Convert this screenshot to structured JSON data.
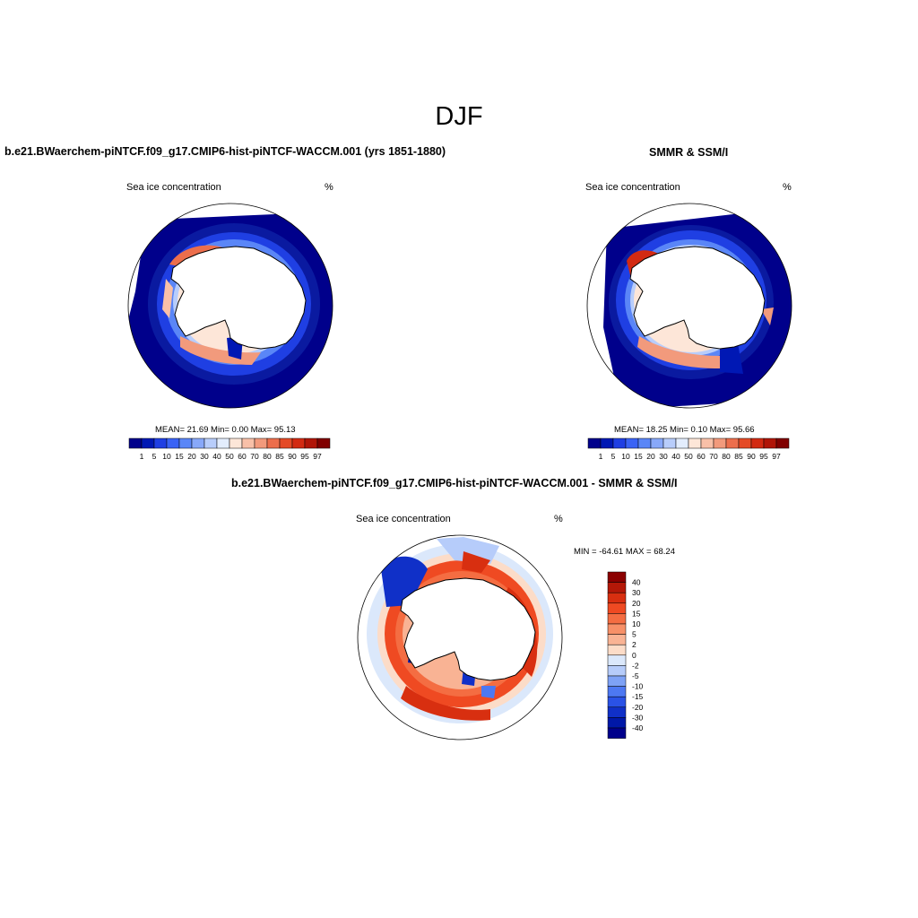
{
  "title": "DJF",
  "panels": [
    {
      "title": "b.e21.BWaerchem-piNTCF.f09_g17.CMIP6-hist-piNTCF-WACCM.001 (yrs 1851-1880)",
      "variable_label": "Sea ice concentration",
      "units_label": "%",
      "stats_text": "MEAN=  21.69  Min=    0.00  Max=  95.13",
      "stats": {
        "mean": 21.69,
        "min": 0.0,
        "max": 95.13
      }
    },
    {
      "title": "SMMR & SSM/I",
      "variable_label": "Sea ice concentration",
      "units_label": "%",
      "stats_text": "MEAN=  18.25  Min=    0.10  Max=  95.66",
      "stats": {
        "mean": 18.25,
        "min": 0.1,
        "max": 95.66
      }
    },
    {
      "title": "b.e21.BWaerchem-piNTCF.f09_g17.CMIP6-hist-piNTCF-WACCM.001 - SMMR & SSM/I",
      "variable_label": "Sea ice concentration",
      "units_label": "%",
      "stats_text": "MIN = -64.61 MAX =  68.24",
      "stats": {
        "min": -64.61,
        "max": 68.24
      }
    }
  ],
  "colorbars": {
    "concentration": {
      "labels": [
        "1",
        "5",
        "10",
        "15",
        "20",
        "30",
        "40",
        "50",
        "60",
        "70",
        "80",
        "85",
        "90",
        "95",
        "97"
      ],
      "colors": [
        "#00008b",
        "#0018b4",
        "#1f3fe3",
        "#3a63f5",
        "#5a86f7",
        "#88a8f9",
        "#b8cdfb",
        "#e3edfd",
        "#fde6d8",
        "#f8c0a8",
        "#f29a7c",
        "#ec6e4c",
        "#e44a26",
        "#d22a12",
        "#b01508",
        "#800000"
      ]
    },
    "difference": {
      "labels": [
        "40",
        "30",
        "20",
        "15",
        "10",
        "5",
        "2",
        "0",
        "-2",
        "-5",
        "-10",
        "-15",
        "-20",
        "-30",
        "-40"
      ],
      "colors": [
        "#8b0000",
        "#b41808",
        "#d82f10",
        "#ef4a22",
        "#f46d42",
        "#f79068",
        "#f9b394",
        "#fcdcc8",
        "#dbe8fb",
        "#b6ccfa",
        "#7ea2f6",
        "#4d78f2",
        "#2a52e6",
        "#1030c8",
        "#0018a8",
        "#00008b"
      ]
    }
  }
}
